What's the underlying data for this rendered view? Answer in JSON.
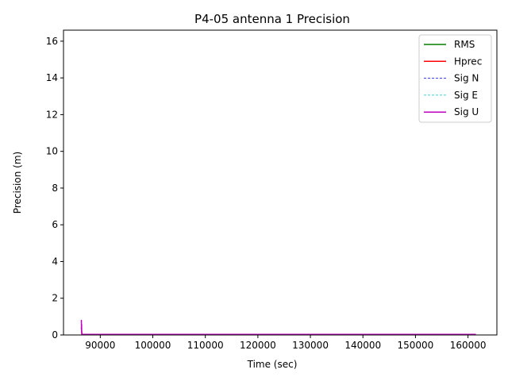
{
  "chart_data": {
    "type": "line",
    "title": "P4-05 antenna 1 Precision",
    "xlabel": "Time (sec)",
    "ylabel": "Precision (m)",
    "xlim": [
      83000,
      165500
    ],
    "ylim": [
      0,
      16.6
    ],
    "xticks": [
      90000,
      100000,
      110000,
      120000,
      130000,
      140000,
      150000,
      160000
    ],
    "yticks": [
      0,
      2,
      4,
      6,
      8,
      10,
      12,
      14,
      16
    ],
    "grid": false,
    "legend_position": "top-right",
    "series": [
      {
        "name": "RMS",
        "color": "#008000",
        "dash": "solid",
        "x": [
          86400,
          86500,
          86700,
          161500
        ],
        "y": [
          0.05,
          0.04,
          0.03,
          0.03
        ]
      },
      {
        "name": "Hprec",
        "color": "#ff0000",
        "dash": "solid",
        "x": [
          86400,
          86500,
          86700,
          161500
        ],
        "y": [
          0.4,
          0.05,
          0.02,
          0.02
        ]
      },
      {
        "name": "Sig N",
        "color": "#0000ff",
        "dash": "dashed",
        "x": [
          86400,
          86500,
          86700,
          161500
        ],
        "y": [
          0.3,
          0.04,
          0.01,
          0.01
        ]
      },
      {
        "name": "Sig E",
        "color": "#00bfbf",
        "dash": "dashed",
        "x": [
          86400,
          86500,
          86700,
          161500
        ],
        "y": [
          0.3,
          0.04,
          0.01,
          0.01
        ]
      },
      {
        "name": "Sig U",
        "color": "#bf00bf",
        "dash": "solid",
        "x": [
          86400,
          86420,
          86440,
          86460,
          86500,
          86600,
          86800,
          161500
        ],
        "y": [
          0.82,
          0.3,
          0.6,
          0.15,
          0.05,
          0.03,
          0.03,
          0.03
        ]
      }
    ]
  }
}
